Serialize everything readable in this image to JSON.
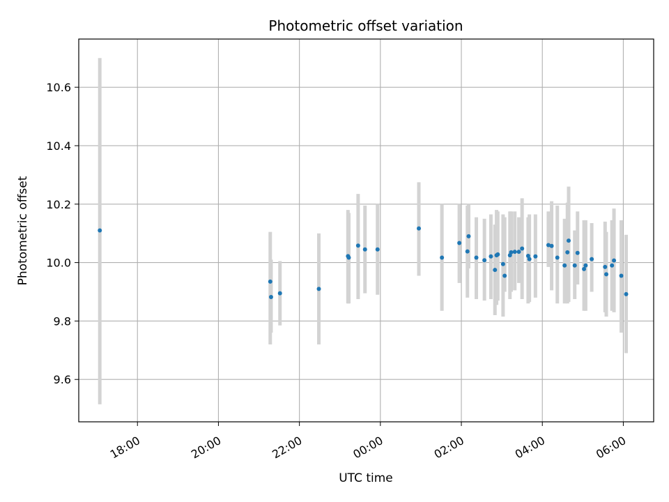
{
  "chart_data": {
    "type": "scatter",
    "title": "Photometric offset variation",
    "xlabel": "UTC time",
    "ylabel": "Photometric offset",
    "x_ticks": [
      "18:00",
      "20:00",
      "22:00",
      "00:00",
      "02:00",
      "04:00",
      "06:00"
    ],
    "y_ticks": [
      "9.6",
      "9.8",
      "10.0",
      "10.2",
      "10.4",
      "10.6"
    ],
    "xlim_hours": [
      16.55,
      30.75
    ],
    "ylim": [
      9.455,
      10.765
    ],
    "grid": true,
    "colors": {
      "point": "#1f77b4",
      "errorbar": "#d3d3d3",
      "grid": "#b0b0b0"
    },
    "series": [
      {
        "x": [
          17.07,
          21.28,
          21.3,
          21.52,
          22.48,
          23.2,
          23.22,
          23.45,
          23.62,
          23.93,
          24.95,
          25.52,
          25.95,
          26.15,
          26.18,
          26.37,
          26.57,
          26.73,
          26.83,
          26.87,
          26.9,
          27.03,
          27.07,
          27.2,
          27.23,
          27.32,
          27.42,
          27.5,
          27.65,
          27.68,
          27.83,
          28.15,
          28.23,
          28.37,
          28.55,
          28.62,
          28.65,
          28.8,
          28.87,
          29.03,
          29.07,
          29.22,
          29.55,
          29.58,
          29.72,
          29.77,
          29.95,
          30.07
        ],
        "y": [
          10.11,
          9.935,
          9.882,
          9.895,
          9.91,
          10.022,
          10.017,
          10.058,
          10.045,
          10.045,
          10.117,
          10.017,
          10.067,
          10.038,
          10.09,
          10.017,
          10.008,
          10.021,
          9.975,
          10.025,
          10.028,
          9.995,
          9.955,
          10.025,
          10.035,
          10.037,
          10.037,
          10.048,
          10.023,
          10.012,
          10.021,
          10.06,
          10.057,
          10.017,
          9.99,
          10.035,
          10.075,
          9.99,
          10.033,
          9.978,
          9.99,
          10.012,
          9.985,
          9.96,
          9.99,
          10.007,
          9.955,
          9.892
        ],
        "err_low": [
          9.515,
          9.72,
          9.76,
          9.785,
          9.72,
          9.86,
          9.86,
          9.875,
          9.895,
          9.89,
          9.955,
          9.835,
          9.93,
          9.88,
          9.98,
          9.875,
          9.87,
          9.875,
          9.82,
          9.855,
          9.87,
          9.815,
          9.9,
          9.875,
          9.9,
          9.905,
          9.93,
          9.875,
          9.86,
          9.865,
          9.88,
          9.985,
          9.905,
          9.86,
          9.86,
          9.86,
          9.865,
          9.875,
          9.925,
          9.835,
          9.835,
          9.9,
          9.83,
          9.815,
          9.835,
          9.83,
          9.76,
          9.69
        ],
        "err_high": [
          10.7,
          10.105,
          10.01,
          10.005,
          10.1,
          10.18,
          10.17,
          10.235,
          10.195,
          10.2,
          10.275,
          10.2,
          10.2,
          10.195,
          10.2,
          10.155,
          10.15,
          10.165,
          10.13,
          10.18,
          10.175,
          10.165,
          10.155,
          10.175,
          10.175,
          10.175,
          10.155,
          10.22,
          10.155,
          10.165,
          10.165,
          10.175,
          10.21,
          10.195,
          10.15,
          10.205,
          10.26,
          10.11,
          10.175,
          10.145,
          10.145,
          10.135,
          10.14,
          10.105,
          10.145,
          10.185,
          10.145,
          10.095
        ]
      }
    ]
  }
}
